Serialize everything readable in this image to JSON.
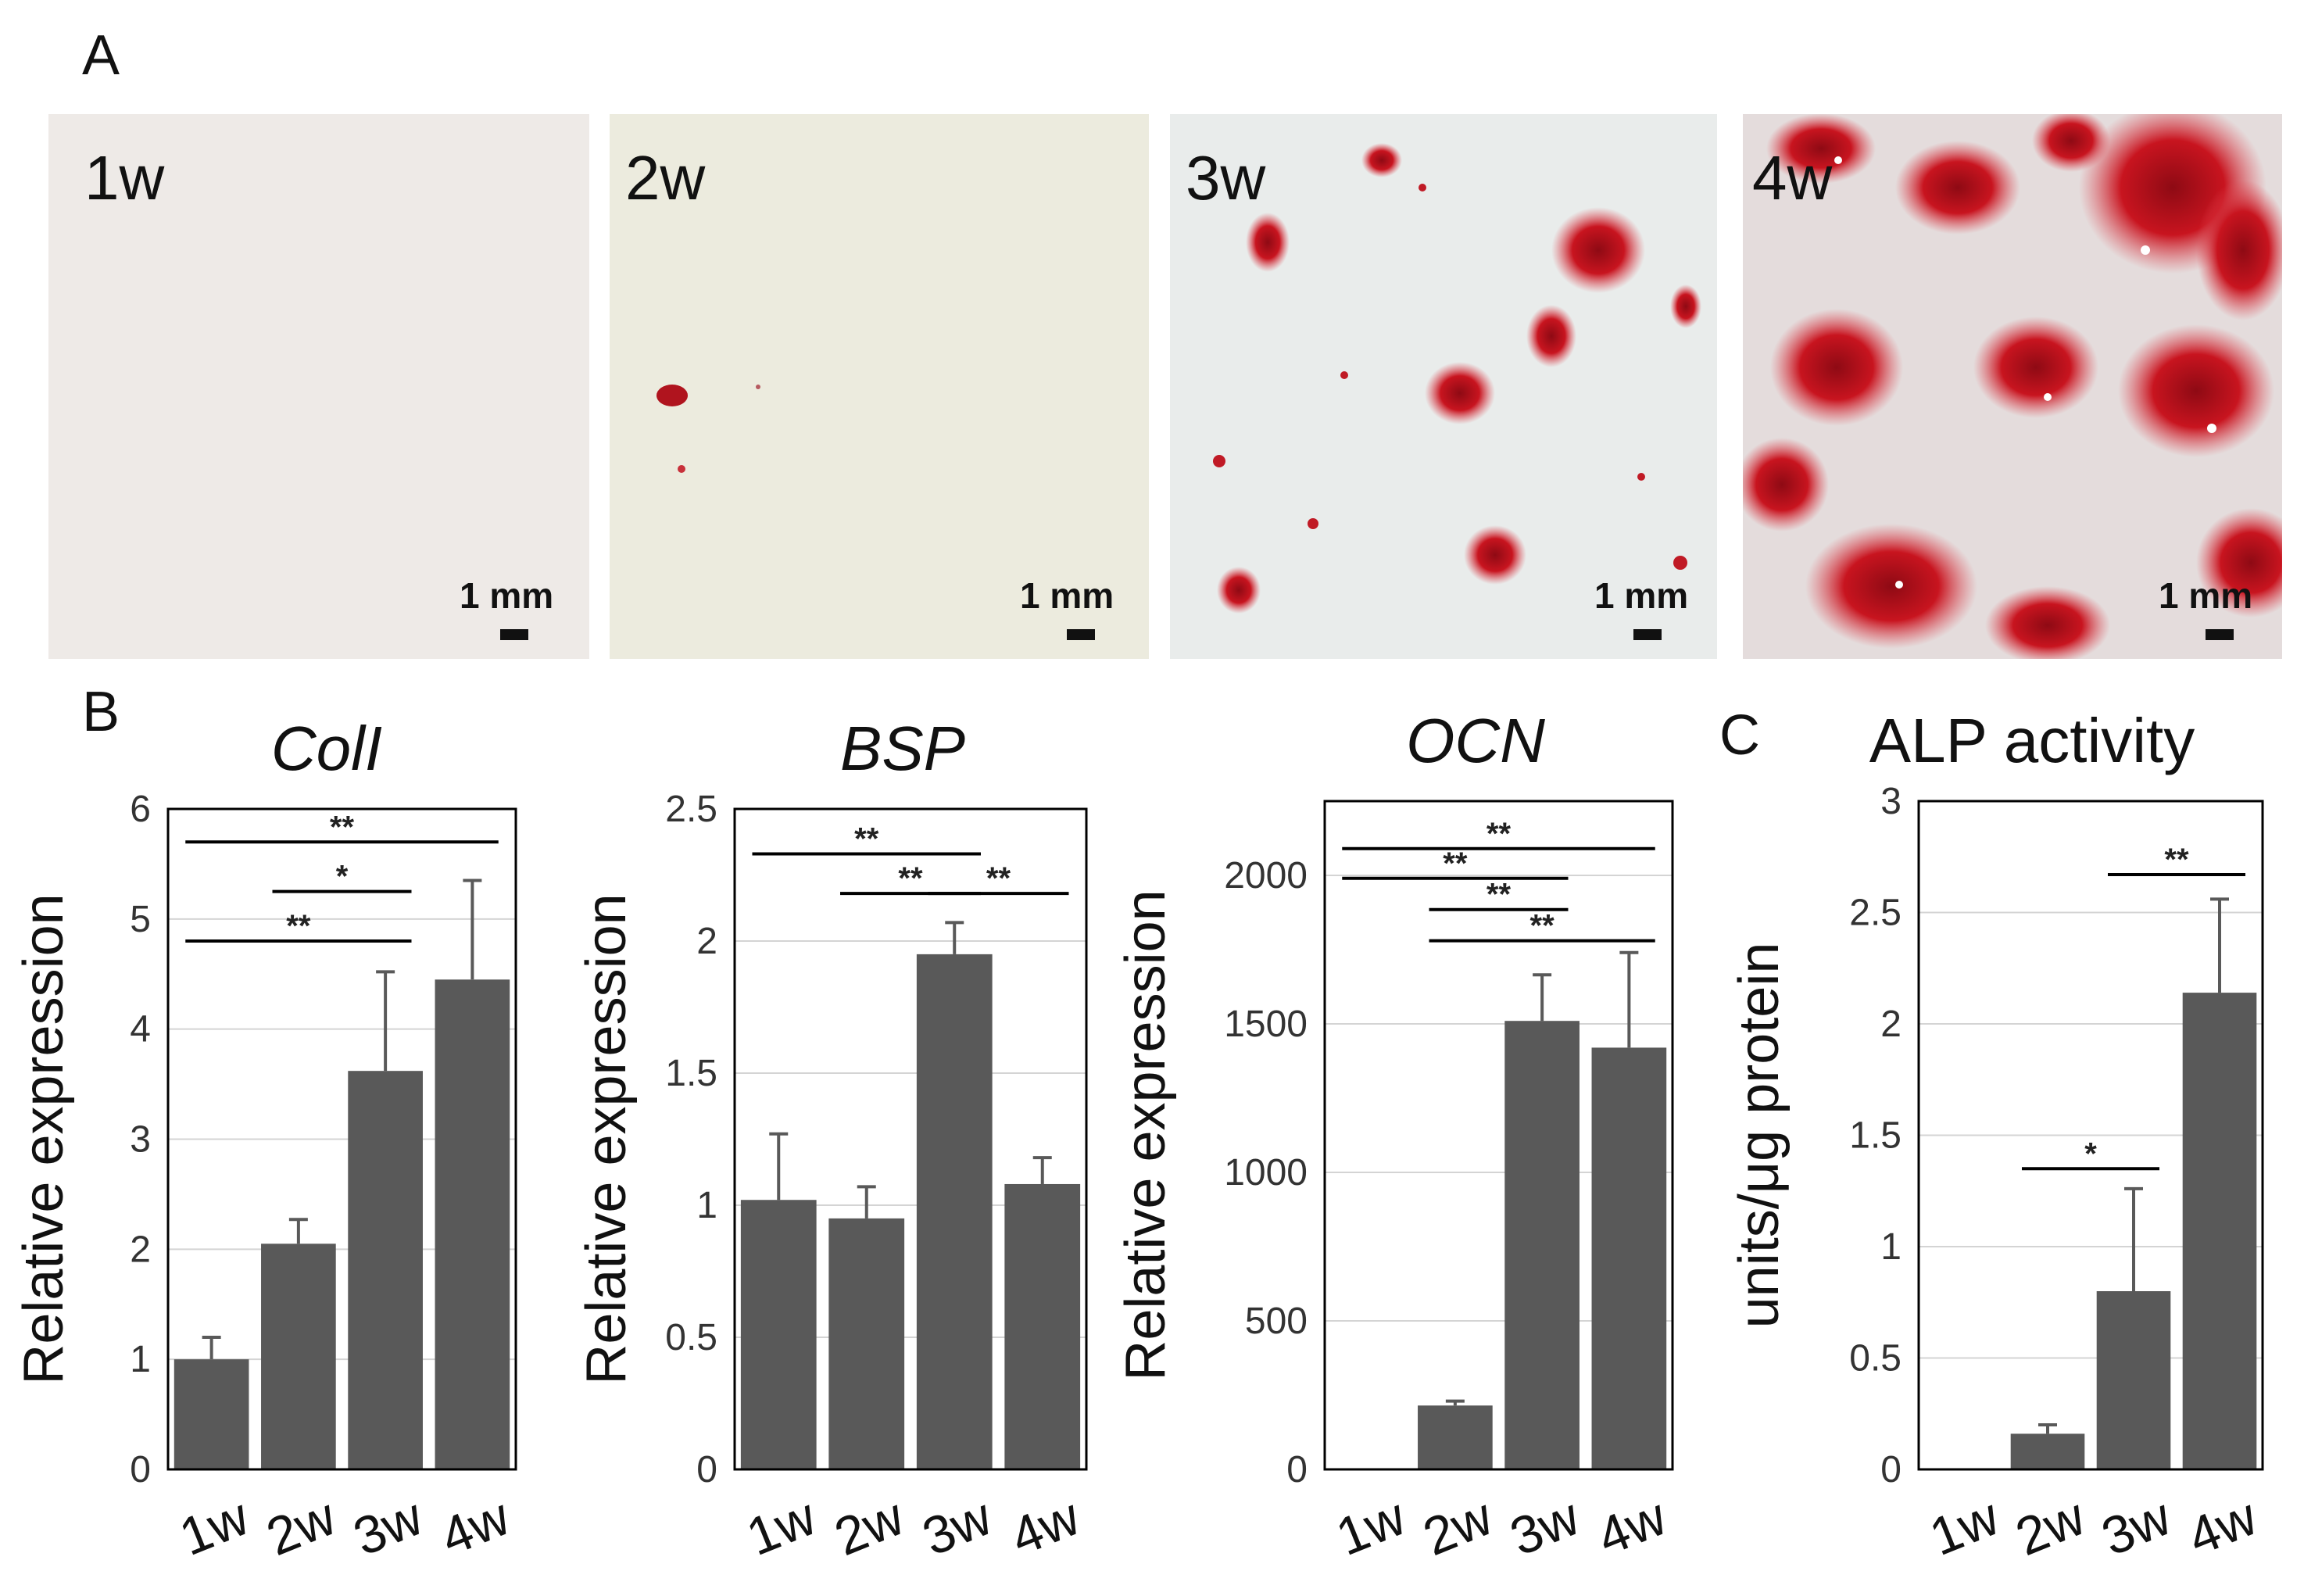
{
  "panel_a": {
    "letter": "A",
    "photos": [
      {
        "label": "1w",
        "scale_text": "1 mm"
      },
      {
        "label": "2w",
        "scale_text": "1 mm"
      },
      {
        "label": "3w",
        "scale_text": "1 mm"
      },
      {
        "label": "4w",
        "scale_text": "1 mm"
      }
    ]
  },
  "panel_b": {
    "letter": "B"
  },
  "panel_c": {
    "letter": "C"
  },
  "chart_data": [
    {
      "type": "bar",
      "title": "ColI",
      "title_italic": true,
      "ylabel": "Relative expression",
      "categories": [
        "1w",
        "2w",
        "3w",
        "4w"
      ],
      "values": [
        1.0,
        2.05,
        3.62,
        4.45
      ],
      "errors": [
        0.2,
        0.22,
        0.9,
        0.9
      ],
      "ylim": [
        0,
        6
      ],
      "yticks": [
        "0",
        "1",
        "2",
        "3",
        "4",
        "5",
        "6"
      ],
      "significance": [
        {
          "from": "1w",
          "to": "4w",
          "label": "**",
          "y": 5.7
        },
        {
          "from": "2w",
          "to": "3w",
          "label": "*",
          "y": 5.25
        },
        {
          "from": "1w",
          "to": "3w",
          "label": "**",
          "y": 4.8
        }
      ]
    },
    {
      "type": "bar",
      "title": "BSP",
      "title_italic": true,
      "ylabel": "Relative expression",
      "categories": [
        "1w",
        "2w",
        "3w",
        "4w"
      ],
      "values": [
        1.02,
        0.95,
        1.95,
        1.08
      ],
      "errors": [
        0.25,
        0.12,
        0.12,
        0.1
      ],
      "ylim": [
        0,
        2.5
      ],
      "yticks": [
        "0",
        "0.5",
        "1",
        "1.5",
        "2",
        "2.5"
      ],
      "significance": [
        {
          "from": "1w",
          "to": "3w",
          "label": "**",
          "y": 2.33
        },
        {
          "from": "2w",
          "to": "3w",
          "label": "**",
          "y": 2.18
        },
        {
          "from": "3w",
          "to": "4w",
          "label": "**",
          "y": 2.18
        }
      ]
    },
    {
      "type": "bar",
      "title": "OCN",
      "title_italic": true,
      "ylabel": "Relative expression",
      "categories": [
        "1w",
        "2w",
        "3w",
        "4w"
      ],
      "values": [
        0,
        215,
        1510,
        1420
      ],
      "errors": [
        0,
        15,
        155,
        320
      ],
      "ylim": [
        0,
        2250
      ],
      "yticks": [
        "0",
        "500",
        "1000",
        "1500",
        "2000"
      ],
      "ytick_values": [
        0,
        500,
        1000,
        1500,
        2000
      ],
      "significance": [
        {
          "from": "1w",
          "to": "4w",
          "label": "**",
          "y": 2090
        },
        {
          "from": "1w",
          "to": "3w",
          "label": "**",
          "y": 1990
        },
        {
          "from": "2w",
          "to": "3w",
          "label": "**",
          "y": 1885
        },
        {
          "from": "2w",
          "to": "4w",
          "label": "**",
          "y": 1780
        }
      ]
    },
    {
      "type": "bar",
      "title": "ALP activity",
      "title_italic": false,
      "ylabel": "units/μg protein",
      "categories": [
        "1w",
        "2w",
        "3w",
        "4w"
      ],
      "values": [
        0.005,
        0.16,
        0.8,
        2.14
      ],
      "errors": [
        0,
        0.04,
        0.46,
        0.42
      ],
      "ylim": [
        0,
        3
      ],
      "yticks": [
        "0",
        "0.5",
        "1",
        "1.5",
        "2",
        "2.5",
        "3"
      ],
      "significance": [
        {
          "from": "2w",
          "to": "3w",
          "label": "*",
          "y": 1.35
        },
        {
          "from": "3w",
          "to": "4w",
          "label": "**",
          "y": 2.67
        }
      ]
    }
  ]
}
